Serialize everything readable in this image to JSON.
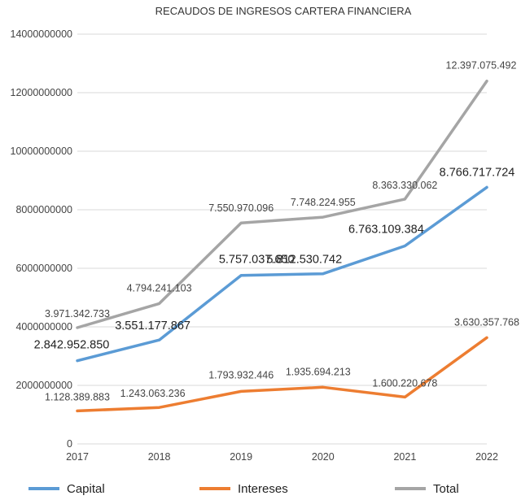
{
  "chart_data": {
    "type": "line",
    "title": "RECAUDOS DE INGRESOS CARTERA FINANCIERA",
    "xlabel": "",
    "ylabel": "",
    "categories": [
      "2017",
      "2018",
      "2019",
      "2020",
      "2021",
      "2022"
    ],
    "ylim": [
      0,
      14000000000
    ],
    "yticks": [
      "0",
      "2000000000",
      "4000000000",
      "6000000000",
      "8000000000",
      "10000000000",
      "12000000000",
      "14000000000"
    ],
    "grid": true,
    "legend_position": "bottom",
    "series": [
      {
        "name": "Capital",
        "color": "#5b9bd5",
        "values": [
          2842952850,
          3551177867,
          5757037650,
          5812530742,
          6763109384,
          8766717724
        ],
        "labels": [
          "2.842.952.850",
          "3.551.177.867",
          "5.757.037.650",
          "5.812.530.742",
          "6.763.109.384",
          "8.766.717.724"
        ]
      },
      {
        "name": "Intereses",
        "color": "#ed7d31",
        "values": [
          1128389883,
          1243063236,
          1793932446,
          1935694213,
          1600220678,
          3630357768
        ],
        "labels": [
          "1.128.389.883",
          "1.243.063.236",
          "1.793.932.446",
          "1.935.694.213",
          "1.600.220.678",
          "3.630.357.768"
        ]
      },
      {
        "name": "Total",
        "color": "#a5a5a5",
        "values": [
          3971342733,
          4794241103,
          7550970096,
          7748224955,
          8363330062,
          12397075492
        ],
        "labels": [
          "3.971.342.733",
          "4.794.241.103",
          "7.550.970.096",
          "7.748.224.955",
          "8.363.330.062",
          "12.397.075.492"
        ]
      }
    ]
  }
}
